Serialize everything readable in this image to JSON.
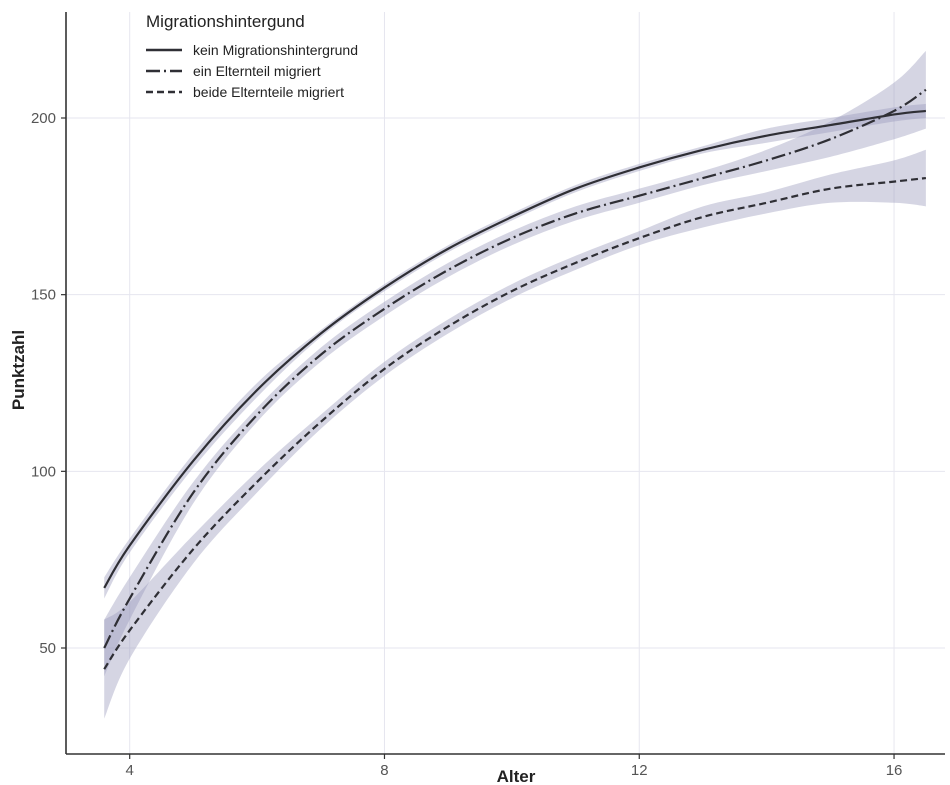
{
  "chart_data": {
    "type": "line",
    "xlabel": "Alter",
    "ylabel": "Punktzahl",
    "xlim": [
      3.0,
      16.8
    ],
    "ylim": [
      20,
      230
    ],
    "xticks": [
      4,
      8,
      12,
      16
    ],
    "yticks": [
      50,
      100,
      150,
      200
    ],
    "grid": true,
    "legend": {
      "title": "Migrationshintergund",
      "position": "top-left"
    },
    "series": [
      {
        "name": "kein Migrationshintergrund",
        "linestyle": "solid",
        "x": [
          3.6,
          4,
          5,
          6,
          7,
          8,
          9,
          10,
          11,
          12,
          13,
          14,
          15,
          16,
          16.5
        ],
        "y": [
          67,
          79,
          103,
          123,
          139,
          152,
          163,
          172,
          180,
          186,
          191,
          195,
          198,
          201,
          202
        ],
        "ci_lower": [
          64,
          77,
          101,
          121,
          138,
          151,
          162,
          171,
          179,
          185,
          190,
          193,
          196,
          199,
          200
        ],
        "ci_upper": [
          70,
          81,
          105,
          125,
          140,
          153,
          164,
          173,
          181,
          187,
          192,
          197,
          200,
          203,
          204
        ]
      },
      {
        "name": "ein Elternteil migriert",
        "linestyle": "dashdot",
        "x": [
          3.6,
          4,
          5,
          6,
          7,
          8,
          9,
          10,
          11,
          12,
          13,
          14,
          15,
          16,
          16.5
        ],
        "y": [
          50,
          64,
          94,
          116,
          133,
          146,
          157,
          166,
          173,
          178,
          183,
          188,
          194,
          202,
          208
        ],
        "ci_lower": [
          42,
          58,
          91,
          114,
          131,
          144,
          155,
          164,
          171,
          176,
          181,
          185,
          189,
          194,
          197
        ],
        "ci_upper": [
          58,
          70,
          97,
          118,
          135,
          148,
          159,
          168,
          175,
          180,
          185,
          191,
          199,
          210,
          219
        ]
      },
      {
        "name": "beide Elternteile migriert",
        "linestyle": "dashed",
        "x": [
          3.6,
          4,
          5,
          6,
          7,
          8,
          9,
          10,
          11,
          12,
          13,
          14,
          15,
          16,
          16.5
        ],
        "y": [
          44,
          55,
          78,
          97,
          114,
          129,
          141,
          151,
          159,
          166,
          172,
          176,
          180,
          182,
          183
        ],
        "ci_lower": [
          30,
          47,
          74,
          94,
          112,
          127,
          139,
          149,
          157,
          164,
          169,
          173,
          176,
          176,
          175
        ],
        "ci_upper": [
          58,
          63,
          82,
          100,
          116,
          131,
          143,
          153,
          161,
          168,
          175,
          179,
          184,
          188,
          191
        ]
      }
    ]
  }
}
